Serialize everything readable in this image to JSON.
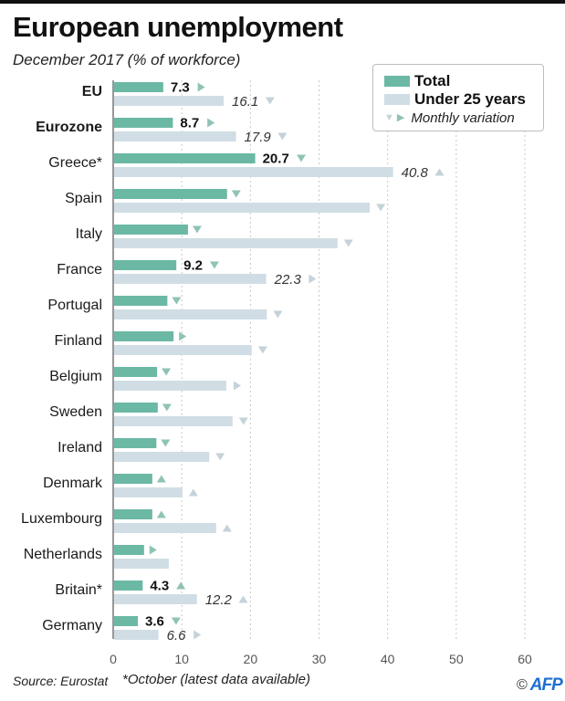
{
  "header": {
    "title": "European unemployment",
    "subtitle": "December 2017  (% of workforce)"
  },
  "legend": {
    "total_label": "Total",
    "under25_label": "Under 25 years",
    "variation_label": "Monthly variation",
    "variation_icons": [
      "triangle-down",
      "triangle-right"
    ]
  },
  "colors": {
    "total": "#6bb8a5",
    "under25": "#d0dde4",
    "arrow_total": "#8fc3b6",
    "arrow_under25": "#c5d2da",
    "axis": "#555555",
    "grid": "#c8c8c8",
    "brand": "#1f6fd1"
  },
  "footer": {
    "source": "Source: Eurostat",
    "note": "*October (latest data available)",
    "copyright": "©",
    "brand": "AFP"
  },
  "chart_data": {
    "type": "bar",
    "orientation": "horizontal",
    "title": "European unemployment",
    "subtitle": "December 2017  (% of workforce)",
    "xlabel": "",
    "ylabel": "",
    "xlim": [
      0,
      60
    ],
    "xticks": [
      0,
      10,
      20,
      30,
      40,
      50,
      60
    ],
    "grid": true,
    "legend_position": "top-right",
    "categories": [
      "EU",
      "Eurozone",
      "Greece*",
      "Spain",
      "Italy",
      "France",
      "Portugal",
      "Finland",
      "Belgium",
      "Sweden",
      "Ireland",
      "Denmark",
      "Luxembourg",
      "Netherlands",
      "Britain*",
      "Germany"
    ],
    "bold_categories": [
      "EU",
      "Eurozone"
    ],
    "series": [
      {
        "name": "Total",
        "values": [
          7.3,
          8.7,
          20.7,
          16.6,
          10.9,
          9.2,
          7.9,
          8.8,
          6.4,
          6.5,
          6.3,
          5.7,
          5.7,
          4.5,
          4.3,
          3.6
        ],
        "labels": [
          "7.3",
          "8.7",
          "20.7",
          "",
          "",
          "9.2",
          "",
          "",
          "",
          "",
          "",
          "",
          "",
          "",
          "4.3",
          "3.6"
        ],
        "variation": [
          "right",
          "right",
          "down",
          "down",
          "down",
          "down",
          "down",
          "right",
          "down",
          "down",
          "down",
          "up",
          "up",
          "right",
          "up",
          "down"
        ]
      },
      {
        "name": "Under 25 years",
        "values": [
          16.1,
          17.9,
          40.8,
          37.4,
          32.7,
          22.3,
          22.4,
          20.2,
          16.5,
          17.4,
          14.0,
          10.1,
          15.0,
          8.1,
          12.2,
          6.6
        ],
        "labels": [
          "16.1",
          "17.9",
          "40.8",
          "",
          "",
          "22.3",
          "",
          "",
          "",
          "",
          "",
          "",
          "",
          "",
          "12.2",
          "6.6"
        ],
        "variation": [
          "down",
          "down",
          "up",
          "down",
          "down",
          "right",
          "down",
          "down",
          "right",
          "down",
          "down",
          "up",
          "up",
          "none",
          "up",
          "right"
        ]
      }
    ]
  }
}
